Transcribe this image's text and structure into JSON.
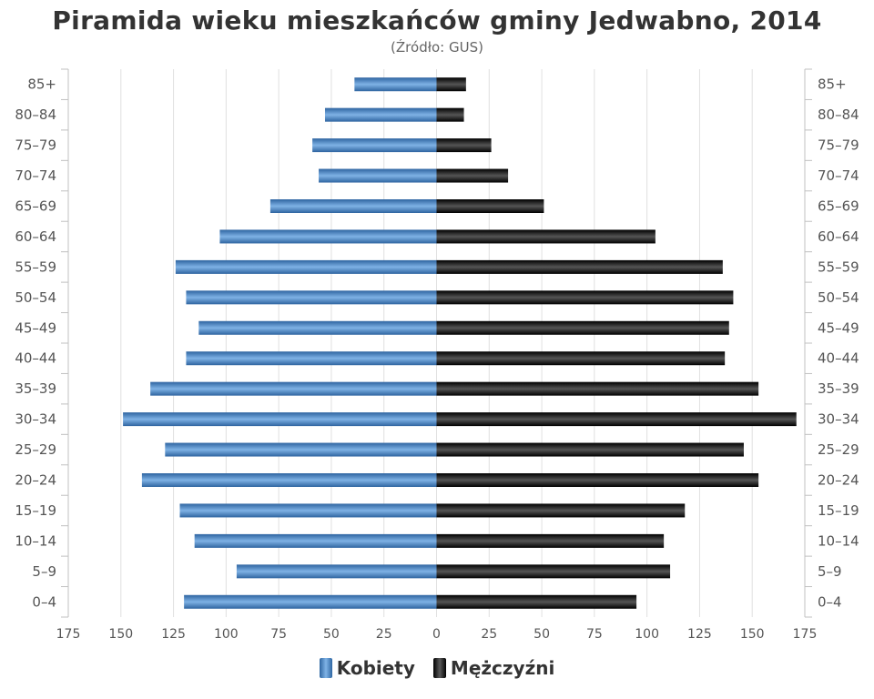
{
  "chart_data": {
    "type": "bar",
    "title": "Piramida wieku mieszkańców gminy Jedwabno, 2014",
    "subtitle": "(Źródło: GUS)",
    "categories": [
      "85+",
      "80–84",
      "75–79",
      "70–74",
      "65–69",
      "60–64",
      "55–59",
      "50–54",
      "45–49",
      "40–44",
      "35–39",
      "30–34",
      "25–29",
      "20–24",
      "15–19",
      "10–14",
      "5–9",
      "0–4"
    ],
    "series": [
      {
        "name": "Kobiety",
        "color": "#3f7ac0",
        "values": [
          39,
          53,
          59,
          56,
          79,
          103,
          124,
          119,
          113,
          119,
          136,
          149,
          129,
          140,
          122,
          115,
          95,
          120
        ]
      },
      {
        "name": "Mężczyźni",
        "color": "#1a1a1a",
        "values": [
          14,
          13,
          26,
          34,
          51,
          104,
          136,
          141,
          139,
          137,
          153,
          171,
          146,
          153,
          118,
          108,
          111,
          95
        ]
      }
    ],
    "x_ticks": [
      "175",
      "150",
      "125",
      "100",
      "75",
      "50",
      "25",
      "0",
      "25",
      "50",
      "75",
      "100",
      "125",
      "150",
      "175"
    ],
    "xlim": [
      -175,
      175
    ],
    "grid": true,
    "legend_position": "bottom-center"
  }
}
